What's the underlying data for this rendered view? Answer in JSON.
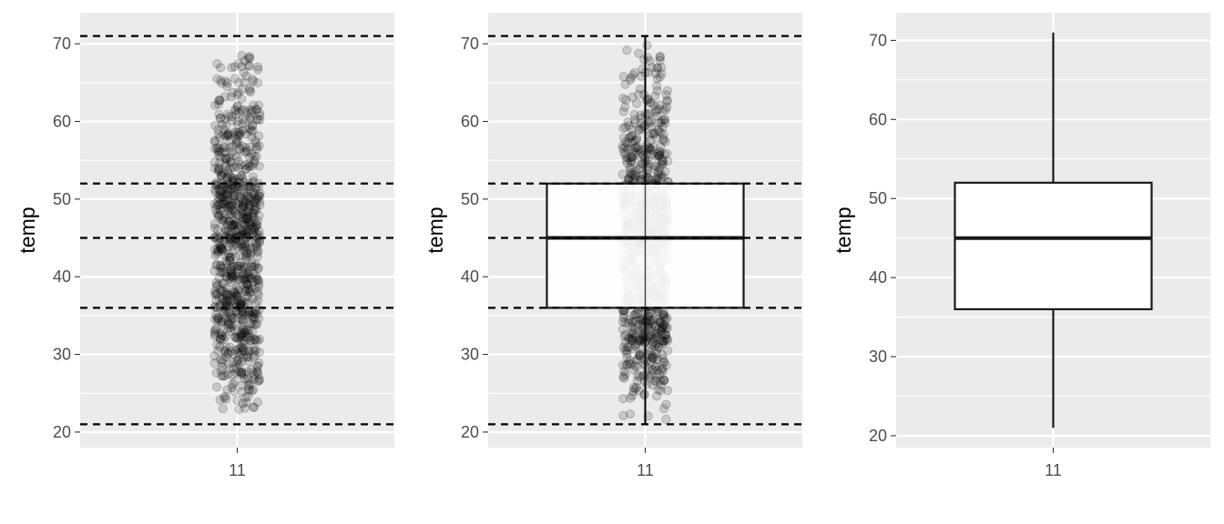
{
  "chart_data": [
    {
      "type": "scatter",
      "panel": "jitter points with quantile reference lines",
      "ylabel": "temp",
      "xlabel": "",
      "categories": [
        "11"
      ],
      "ylim": [
        18,
        74
      ],
      "yticks": [
        20,
        30,
        40,
        50,
        60,
        70
      ],
      "grid": true,
      "reference_lines": [
        21,
        36,
        45,
        52,
        71
      ],
      "points": {
        "min": 21,
        "q1": 36,
        "median": 45,
        "q3": 52,
        "max": 71,
        "count": 900,
        "alpha": 0.15
      }
    },
    {
      "type": "scatter",
      "panel": "jitter points + boxplot with quantile reference lines",
      "ylabel": "temp",
      "xlabel": "",
      "categories": [
        "11"
      ],
      "ylim": [
        18,
        74
      ],
      "yticks": [
        20,
        30,
        40,
        50,
        60,
        70
      ],
      "grid": true,
      "reference_lines": [
        21,
        36,
        45,
        52,
        71
      ],
      "box": {
        "min": 21,
        "q1": 36,
        "median": 45,
        "q3": 52,
        "max": 71
      },
      "points": {
        "min": 21,
        "q1": 36,
        "median": 45,
        "q3": 52,
        "max": 71,
        "count": 900,
        "alpha": 0.15
      }
    },
    {
      "type": "box",
      "panel": "boxplot",
      "ylabel": "temp",
      "xlabel": "",
      "categories": [
        "11"
      ],
      "ylim": [
        18.5,
        73.5
      ],
      "yticks": [
        20,
        30,
        40,
        50,
        60,
        70
      ],
      "grid": true,
      "box": {
        "min": 21,
        "q1": 36,
        "median": 45,
        "q3": 52,
        "max": 71
      }
    }
  ],
  "colors": {
    "panel_bg": "#ebebeb",
    "grid": "#ffffff",
    "ink": "#000000",
    "axis_text": "#4d4d4d"
  }
}
